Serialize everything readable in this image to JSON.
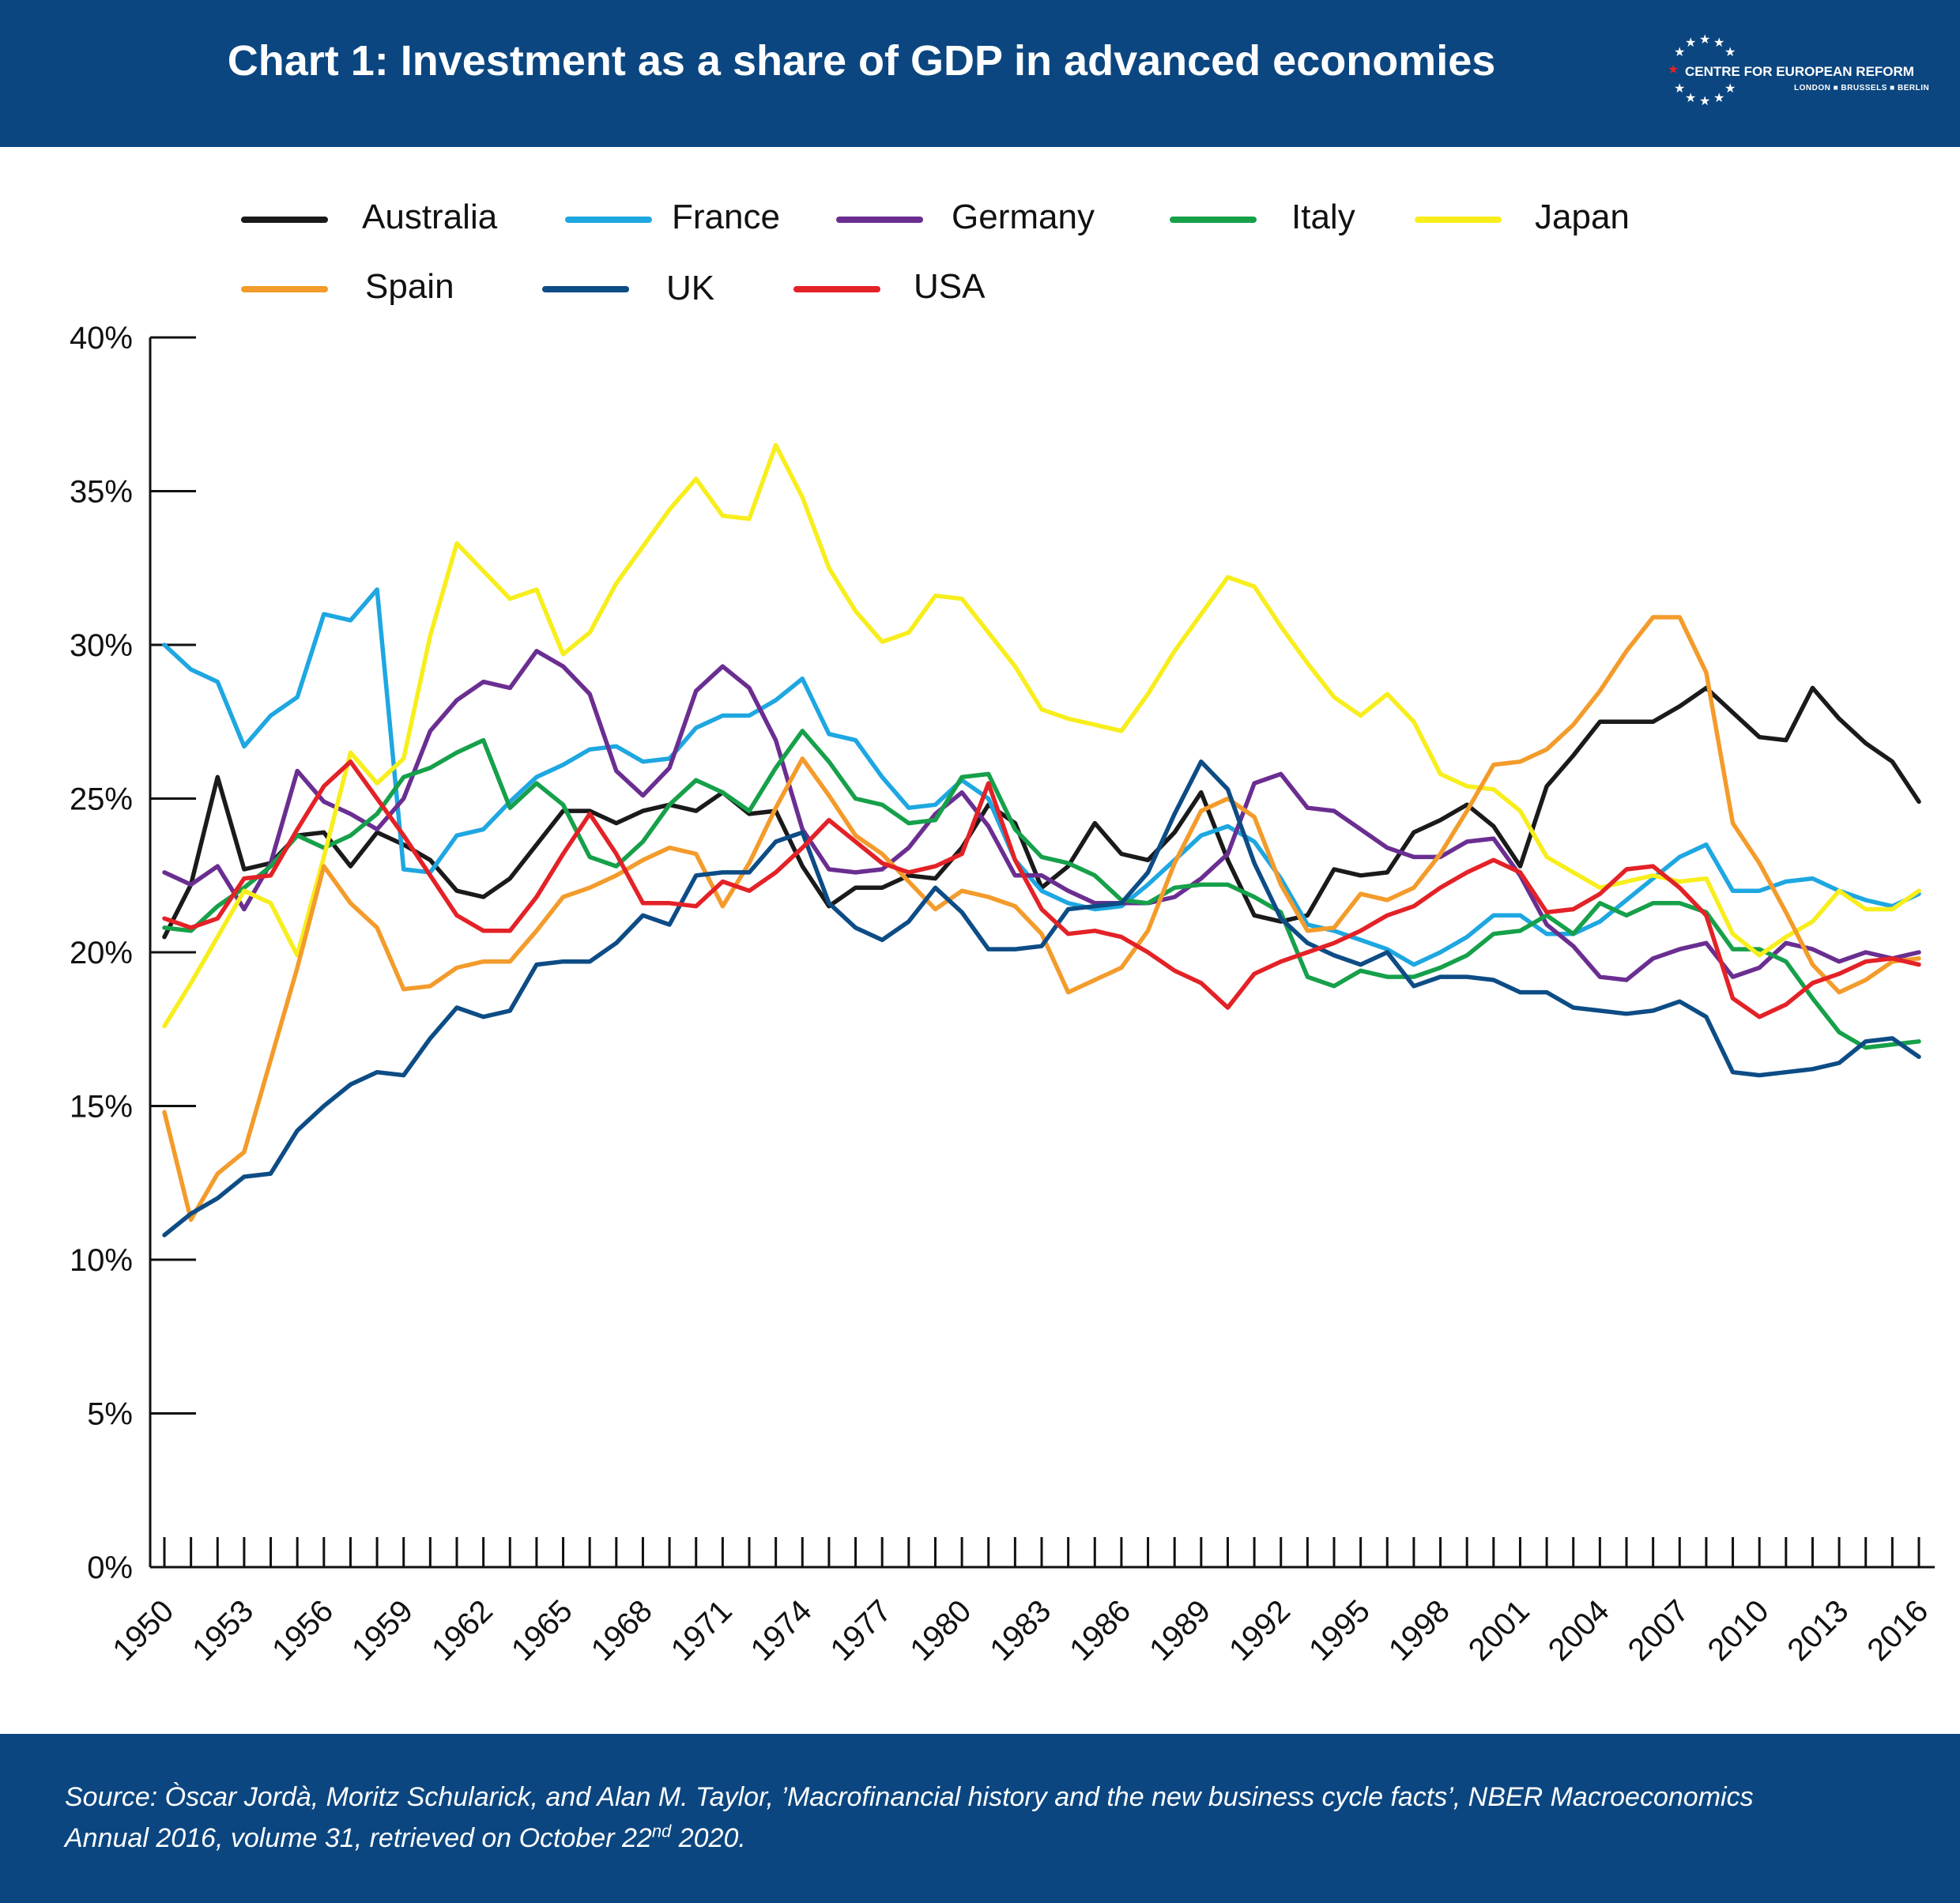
{
  "header": {
    "title": "Chart 1: Investment as a share of GDP in advanced economies",
    "logo_name": "CENTRE FOR EUROPEAN REFORM",
    "logo_cities": "LONDON ■ BRUSSELS ■ BERLIN"
  },
  "colors": {
    "header_bg": "#0b4680",
    "Australia": "#1a1a1a",
    "France": "#1ea7e1",
    "Germany": "#6a2e91",
    "Italy": "#16a04a",
    "Japan": "#f7ee1c",
    "Spain": "#f39b2b",
    "UK": "#0d4c85",
    "USA": "#e32227"
  },
  "footer": {
    "source_line1": "Source:  Òscar Jordà, Moritz Schularick, and Alan M. Taylor, ’Macrofinancial history and the new business cycle facts’, NBER Macroeconomics",
    "source_line2_pre": "Annual 2016, volume 31, retrieved on October 22",
    "source_line2_sup": "nd",
    "source_line2_post": " 2020."
  },
  "chart_data": {
    "type": "line",
    "title": "Chart 1: Investment as a share of GDP in advanced economies",
    "xlabel": "",
    "ylabel": "",
    "ylim": [
      0,
      40
    ],
    "yticks": [
      "0%",
      "5%",
      "10%",
      "15%",
      "20%",
      "25%",
      "30%",
      "35%",
      "40%"
    ],
    "xticks": [
      "1950",
      "1953",
      "1956",
      "1959",
      "1962",
      "1965",
      "1968",
      "1971",
      "1974",
      "1977",
      "1980",
      "1983",
      "1986",
      "1989",
      "1992",
      "1995",
      "1998",
      "2001",
      "2004",
      "2007",
      "2010",
      "2013",
      "2016"
    ],
    "x": [
      1950,
      1951,
      1952,
      1953,
      1954,
      1955,
      1956,
      1957,
      1958,
      1959,
      1960,
      1961,
      1962,
      1963,
      1964,
      1965,
      1966,
      1967,
      1968,
      1969,
      1970,
      1971,
      1972,
      1973,
      1974,
      1975,
      1976,
      1977,
      1978,
      1979,
      1980,
      1981,
      1982,
      1983,
      1984,
      1985,
      1986,
      1987,
      1988,
      1989,
      1990,
      1991,
      1992,
      1993,
      1994,
      1995,
      1996,
      1997,
      1998,
      1999,
      2000,
      2001,
      2002,
      2003,
      2004,
      2005,
      2006,
      2007,
      2008,
      2009,
      2010,
      2011,
      2012,
      2013,
      2014,
      2015,
      2016
    ],
    "legend": "top, two rows",
    "grid": false,
    "series": [
      {
        "name": "Australia",
        "values": [
          20.5,
          22.2,
          25.7,
          22.7,
          22.9,
          23.8,
          23.9,
          22.8,
          23.9,
          23.5,
          23.0,
          22.0,
          21.8,
          22.4,
          23.5,
          24.6,
          24.6,
          24.2,
          24.6,
          24.8,
          24.6,
          25.2,
          24.5,
          24.6,
          22.8,
          21.5,
          22.1,
          22.1,
          22.5,
          22.4,
          23.4,
          24.8,
          24.2,
          22.1,
          22.8,
          24.2,
          23.2,
          23.0,
          23.9,
          25.2,
          23.0,
          21.2,
          21.0,
          21.2,
          22.7,
          22.5,
          22.6,
          23.9,
          24.3,
          24.8,
          24.1,
          22.8,
          25.4,
          26.4,
          27.5,
          27.5,
          27.5,
          28.0,
          28.6,
          27.8,
          27.0,
          26.9,
          28.6,
          27.6,
          26.8,
          26.2,
          24.9
        ]
      },
      {
        "name": "France",
        "values": [
          30.0,
          29.2,
          28.8,
          26.7,
          27.7,
          28.3,
          31.0,
          30.8,
          31.8,
          22.7,
          22.6,
          23.8,
          24.0,
          24.9,
          25.7,
          26.1,
          26.6,
          26.7,
          26.2,
          26.3,
          27.3,
          27.7,
          27.7,
          28.2,
          28.9,
          27.1,
          26.9,
          25.7,
          24.7,
          24.8,
          25.6,
          25.0,
          23.0,
          22.0,
          21.6,
          21.4,
          21.5,
          22.2,
          23.0,
          23.8,
          24.1,
          23.6,
          22.4,
          20.9,
          20.7,
          20.4,
          20.1,
          19.6,
          20.0,
          20.5,
          21.2,
          21.2,
          20.6,
          20.6,
          21.0,
          21.7,
          22.4,
          23.1,
          23.5,
          22.0,
          22.0,
          22.3,
          22.4,
          22.0,
          21.7,
          21.5,
          21.9
        ]
      },
      {
        "name": "Germany",
        "values": [
          22.6,
          22.2,
          22.8,
          21.4,
          22.9,
          25.9,
          24.9,
          24.5,
          24.0,
          25.0,
          27.2,
          28.2,
          28.8,
          28.6,
          29.8,
          29.3,
          28.4,
          25.9,
          25.1,
          26.0,
          28.5,
          29.3,
          28.6,
          26.9,
          24.0,
          22.7,
          22.6,
          22.7,
          23.4,
          24.5,
          25.2,
          24.1,
          22.5,
          22.5,
          22.0,
          21.6,
          21.6,
          21.6,
          21.8,
          22.4,
          23.2,
          25.5,
          25.8,
          24.7,
          24.6,
          24.0,
          23.4,
          23.1,
          23.1,
          23.6,
          23.7,
          22.5,
          20.9,
          20.2,
          19.2,
          19.1,
          19.8,
          20.1,
          20.3,
          19.2,
          19.5,
          20.3,
          20.1,
          19.7,
          20.0,
          19.8,
          20.0
        ]
      },
      {
        "name": "Italy",
        "values": [
          20.8,
          20.7,
          21.5,
          22.1,
          22.8,
          23.8,
          23.4,
          23.8,
          24.5,
          25.7,
          26.0,
          26.5,
          26.9,
          24.7,
          25.5,
          24.8,
          23.1,
          22.8,
          23.6,
          24.8,
          25.6,
          25.2,
          24.6,
          26.0,
          27.2,
          26.2,
          25.0,
          24.8,
          24.2,
          24.3,
          25.7,
          25.8,
          24.0,
          23.1,
          22.9,
          22.5,
          21.7,
          21.6,
          22.1,
          22.2,
          22.2,
          21.8,
          21.3,
          19.2,
          18.9,
          19.4,
          19.2,
          19.2,
          19.5,
          19.9,
          20.6,
          20.7,
          21.2,
          20.6,
          21.6,
          21.2,
          21.6,
          21.6,
          21.3,
          20.1,
          20.1,
          19.7,
          18.5,
          17.4,
          16.9,
          17.0,
          17.1
        ]
      },
      {
        "name": "Japan",
        "values": [
          17.6,
          19.0,
          20.5,
          22.0,
          21.6,
          19.9,
          23.1,
          26.5,
          25.5,
          26.3,
          30.3,
          33.3,
          32.4,
          31.5,
          31.8,
          29.7,
          30.4,
          32.0,
          33.2,
          34.4,
          35.4,
          34.2,
          34.1,
          36.5,
          34.8,
          32.5,
          31.1,
          30.1,
          30.4,
          31.6,
          31.5,
          30.4,
          29.3,
          27.9,
          27.6,
          27.4,
          27.2,
          28.4,
          29.8,
          31.0,
          32.2,
          31.9,
          30.6,
          29.4,
          28.3,
          27.7,
          28.4,
          27.5,
          25.8,
          25.4,
          25.3,
          24.6,
          23.1,
          22.6,
          22.1,
          22.3,
          22.5,
          22.3,
          22.4,
          20.6,
          19.9,
          20.5,
          21.0,
          22.0,
          21.4,
          21.4,
          22.0
        ]
      },
      {
        "name": "Spain",
        "values": [
          14.8,
          11.3,
          12.8,
          13.5,
          16.5,
          19.5,
          22.8,
          21.6,
          20.8,
          18.8,
          18.9,
          19.5,
          19.7,
          19.7,
          20.7,
          21.8,
          22.1,
          22.5,
          23.0,
          23.4,
          23.2,
          21.5,
          22.9,
          24.7,
          26.3,
          25.1,
          23.8,
          23.2,
          22.3,
          21.4,
          22.0,
          21.8,
          21.5,
          20.6,
          18.7,
          19.1,
          19.5,
          20.7,
          22.9,
          24.6,
          25.0,
          24.4,
          22.2,
          20.7,
          20.8,
          21.9,
          21.7,
          22.1,
          23.2,
          24.6,
          26.1,
          26.2,
          26.6,
          27.4,
          28.5,
          29.8,
          30.9,
          30.9,
          29.1,
          24.2,
          22.9,
          21.3,
          19.6,
          18.7,
          19.1,
          19.7,
          19.8
        ]
      },
      {
        "name": "UK",
        "values": [
          10.8,
          11.5,
          12.0,
          12.7,
          12.8,
          14.2,
          15.0,
          15.7,
          16.1,
          16.0,
          17.2,
          18.2,
          17.9,
          18.1,
          19.6,
          19.7,
          19.7,
          20.3,
          21.2,
          20.9,
          22.5,
          22.6,
          22.6,
          23.6,
          23.9,
          21.6,
          20.8,
          20.4,
          21.0,
          22.1,
          21.3,
          20.1,
          20.1,
          20.2,
          21.4,
          21.5,
          21.6,
          22.6,
          24.5,
          26.2,
          25.3,
          22.9,
          21.1,
          20.3,
          19.9,
          19.6,
          20.0,
          18.9,
          19.2,
          19.2,
          19.1,
          18.7,
          18.7,
          18.2,
          18.1,
          18.0,
          18.1,
          18.4,
          17.9,
          16.1,
          16.0,
          16.1,
          16.2,
          16.4,
          17.1,
          17.2,
          16.6
        ]
      },
      {
        "name": "USA",
        "values": [
          21.1,
          20.8,
          21.1,
          22.4,
          22.5,
          24.0,
          25.4,
          26.2,
          25.0,
          23.8,
          22.5,
          21.2,
          20.7,
          20.7,
          21.8,
          23.2,
          24.5,
          23.2,
          21.6,
          21.6,
          21.5,
          22.3,
          22.0,
          22.6,
          23.4,
          24.3,
          23.6,
          22.9,
          22.6,
          22.8,
          23.2,
          25.5,
          23.0,
          21.4,
          20.6,
          20.7,
          20.5,
          20.0,
          19.4,
          19.0,
          18.2,
          19.3,
          19.7,
          20.0,
          20.3,
          20.7,
          21.2,
          21.5,
          22.1,
          22.6,
          23.0,
          22.6,
          21.3,
          21.4,
          21.9,
          22.7,
          22.8,
          22.1,
          21.2,
          18.5,
          17.9,
          18.3,
          19.0,
          19.3,
          19.7,
          19.8,
          19.6
        ]
      }
    ]
  }
}
